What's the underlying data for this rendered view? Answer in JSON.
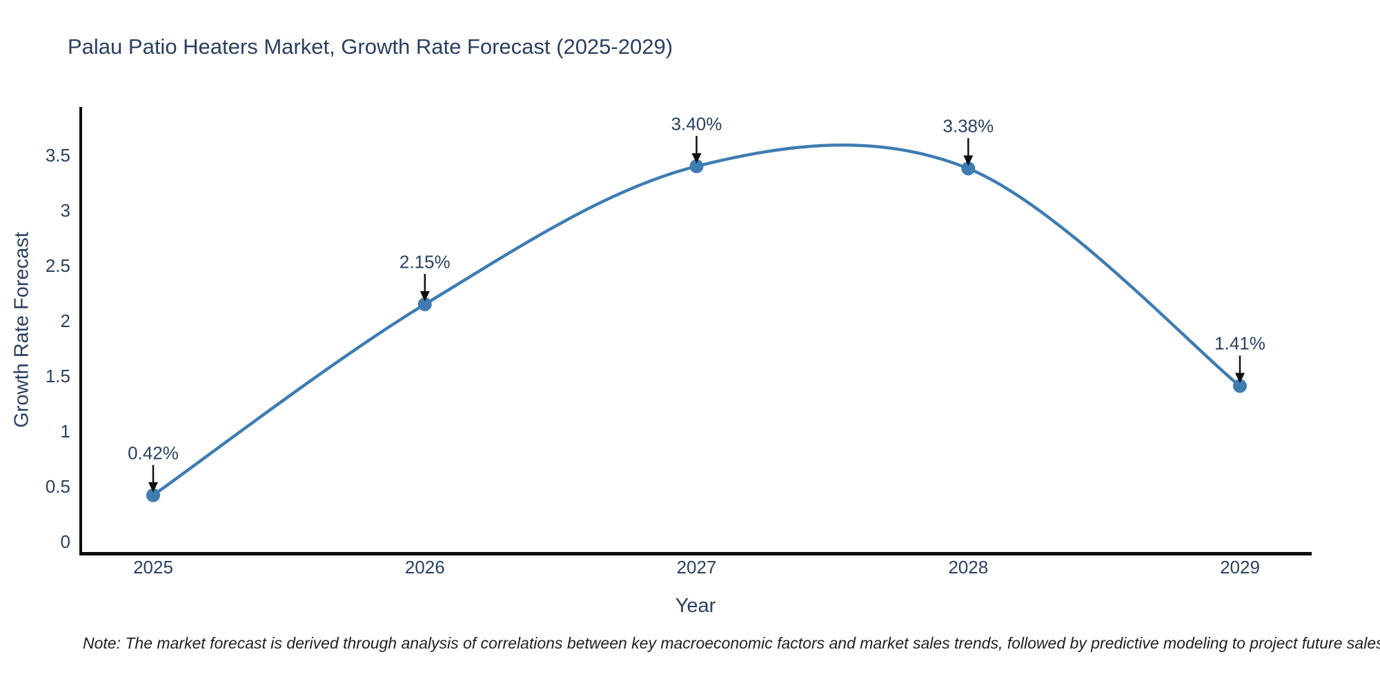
{
  "title": "Palau Patio Heaters Market, Growth Rate Forecast (2025-2029)",
  "note": "Note: The market forecast is derived through analysis of correlations between key macroeconomic factors and market sales trends, followed by predictive modeling to project future sales",
  "chart_data": {
    "type": "line",
    "title": "Palau Patio Heaters Market, Growth Rate Forecast (2025-2029)",
    "xlabel": "Year",
    "ylabel": "Growth Rate Forecast",
    "x": [
      2025,
      2026,
      2027,
      2028,
      2029
    ],
    "series": [
      {
        "name": "Growth Rate Forecast",
        "values": [
          0.42,
          2.15,
          3.4,
          3.38,
          1.41
        ]
      }
    ],
    "annotations": [
      "0.42%",
      "2.15%",
      "3.40%",
      "3.38%",
      "1.41%"
    ],
    "yticks": [
      0,
      0.5,
      1,
      1.5,
      2,
      2.5,
      3,
      3.5
    ],
    "ylim": [
      0,
      3.94
    ],
    "line_shape": "spline",
    "grid": false,
    "legend": false,
    "line_color": "#3E7CB1",
    "marker_color": "#3E7CB1",
    "arrow_color": "#111111",
    "axis_color": "#0d0d0d",
    "text_color": "#2a3f5f"
  }
}
